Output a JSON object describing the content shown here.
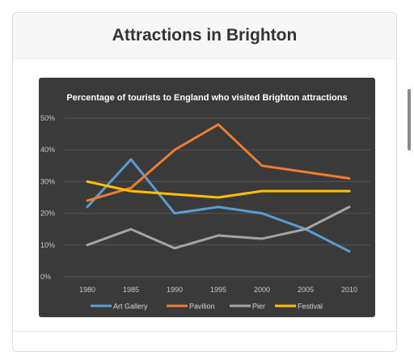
{
  "header": {
    "title": "Attractions in Brighton"
  },
  "chart_data": {
    "type": "line",
    "title": "Percentage of tourists to England who visited Brighton attractions",
    "xlabel": "",
    "ylabel": "",
    "x": [
      "1980",
      "1985",
      "1990",
      "1995",
      "2000",
      "2005",
      "2010"
    ],
    "ylim": [
      0,
      50
    ],
    "yticks": [
      "0%",
      "10%",
      "20%",
      "30%",
      "40%",
      "50%"
    ],
    "grid": true,
    "legend": "bottom",
    "background": "#3a3a3a",
    "series": [
      {
        "name": "Art Gallery",
        "color": "#5b9bd5",
        "values": [
          22,
          37,
          20,
          22,
          20,
          15,
          8
        ]
      },
      {
        "name": "Pavilion",
        "color": "#ed7d31",
        "values": [
          24,
          28,
          40,
          48,
          35,
          33,
          31
        ]
      },
      {
        "name": "Pier",
        "color": "#a5a5a5",
        "values": [
          10,
          15,
          9,
          13,
          12,
          15,
          22
        ]
      },
      {
        "name": "Festival",
        "color": "#ffc000",
        "values": [
          30,
          27,
          26,
          25,
          27,
          27,
          27
        ]
      }
    ]
  }
}
